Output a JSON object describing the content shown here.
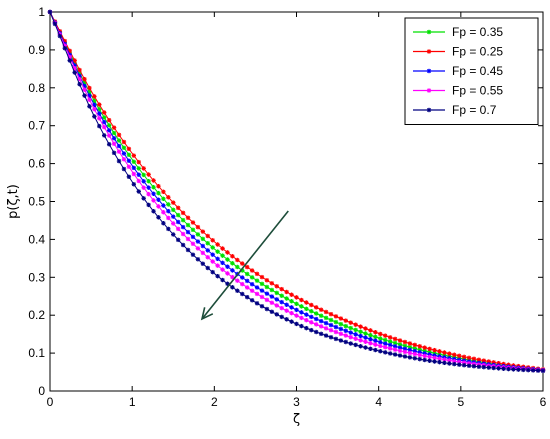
{
  "chart_data": {
    "type": "line",
    "xlabel": "ζ",
    "ylabel": "p(ζ,t)",
    "xlim": [
      0,
      6
    ],
    "ylim": [
      0,
      1
    ],
    "xticks": [
      "0",
      "1",
      "2",
      "3",
      "4",
      "5",
      "6"
    ],
    "yticks": [
      "0",
      "0.1",
      "0.2",
      "0.3",
      "0.4",
      "0.5",
      "0.6",
      "0.7",
      "0.8",
      "0.9",
      "1"
    ],
    "grid": false,
    "legend_position": "top-right",
    "x": [
      0,
      0.5,
      1,
      1.5,
      2,
      2.5,
      3,
      3.5,
      4,
      4.5,
      5,
      5.5,
      6
    ],
    "series": [
      {
        "name": "Fp = 0.35",
        "color": "#00e000",
        "marker": "star",
        "values": [
          1.0,
          0.781,
          0.611,
          0.478,
          0.375,
          0.294,
          0.23,
          0.18,
          0.14,
          0.109,
          0.086,
          0.068,
          0.055
        ]
      },
      {
        "name": "Fp = 0.25",
        "color": "#ff0000",
        "marker": "star",
        "values": [
          1.0,
          0.792,
          0.627,
          0.497,
          0.394,
          0.312,
          0.247,
          0.195,
          0.152,
          0.118,
          0.092,
          0.072,
          0.057
        ]
      },
      {
        "name": "Fp = 0.45",
        "color": "#0000ff",
        "marker": "star",
        "values": [
          1.0,
          0.771,
          0.595,
          0.46,
          0.356,
          0.276,
          0.214,
          0.167,
          0.13,
          0.102,
          0.081,
          0.066,
          0.055
        ]
      },
      {
        "name": "Fp = 0.55",
        "color": "#ff00ff",
        "marker": "star",
        "values": [
          1.0,
          0.76,
          0.579,
          0.442,
          0.338,
          0.259,
          0.199,
          0.154,
          0.12,
          0.095,
          0.076,
          0.063,
          0.054
        ]
      },
      {
        "name": "Fp  = 0.7",
        "color": "#000080",
        "marker": "star",
        "values": [
          1.0,
          0.742,
          0.552,
          0.413,
          0.31,
          0.234,
          0.177,
          0.136,
          0.106,
          0.084,
          0.069,
          0.059,
          0.053
        ]
      }
    ],
    "annotations": [
      {
        "type": "arrow",
        "from": [
          2.9,
          0.475
        ],
        "to": [
          1.85,
          0.19
        ],
        "color": "#1d4d3a"
      }
    ]
  },
  "colors": {
    "axes": "#000000",
    "arrow": "#1d4d3a",
    "background": "#ffffff"
  }
}
